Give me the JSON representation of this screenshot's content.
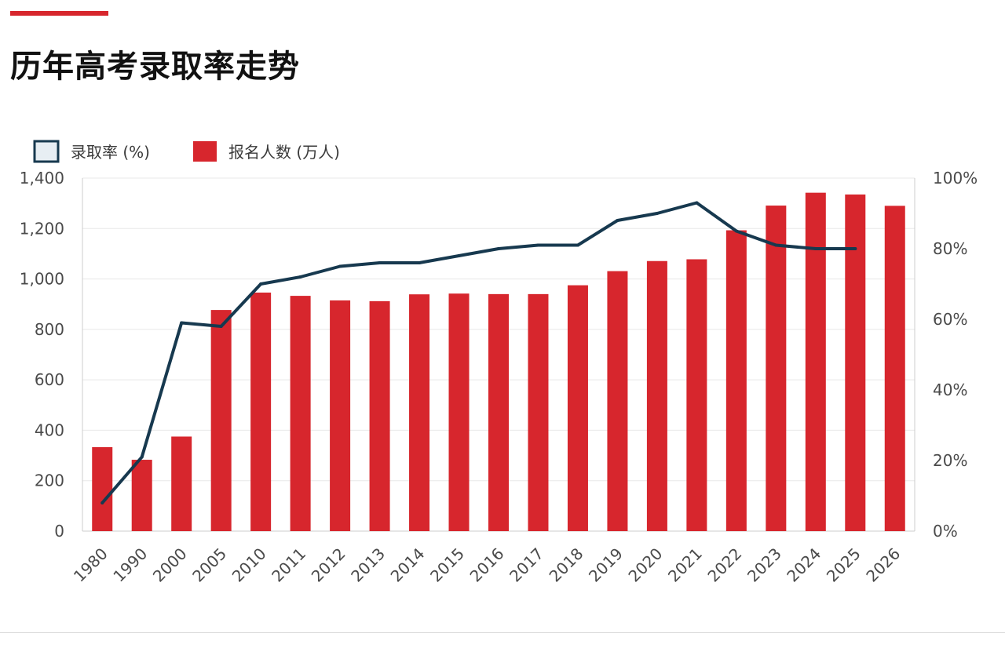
{
  "page": {
    "title": "历年高考录取率走势"
  },
  "colors": {
    "accent": "#d7262d",
    "bar": "#d7262d",
    "line": "#17394f",
    "grid": "#e8e8e8",
    "axis_text": "#4a4a4a"
  },
  "chart_data": {
    "type": "bar",
    "categories": [
      "1980",
      "1990",
      "2000",
      "2005",
      "2010",
      "2011",
      "2012",
      "2013",
      "2014",
      "2015",
      "2016",
      "2017",
      "2018",
      "2019",
      "2020",
      "2021",
      "2022",
      "2023",
      "2024",
      "2025",
      "2026"
    ],
    "series": [
      {
        "name": "报名人数 (万人)",
        "type": "bar",
        "axis": "left",
        "values": [
          333,
          283,
          375,
          877,
          946,
          933,
          915,
          912,
          939,
          942,
          940,
          940,
          975,
          1031,
          1071,
          1078,
          1193,
          1291,
          1342,
          1335,
          1290
        ]
      },
      {
        "name": "录取率 (%)",
        "type": "line",
        "axis": "right",
        "values": [
          8,
          21,
          59,
          58,
          70,
          72,
          75,
          76,
          76,
          78,
          80,
          81,
          81,
          88,
          90,
          93,
          85,
          81,
          80,
          80,
          null
        ]
      }
    ],
    "y_left": {
      "lim": [
        0,
        1400
      ],
      "ticks": [
        0,
        200,
        400,
        600,
        800,
        1000,
        1200,
        1400
      ],
      "tick_labels": [
        "0",
        "200",
        "400",
        "600",
        "800",
        "1,000",
        "1,200",
        "1,400"
      ]
    },
    "y_right": {
      "lim": [
        0,
        100
      ],
      "ticks": [
        0,
        20,
        40,
        60,
        80,
        100
      ],
      "tick_labels": [
        "0%",
        "20%",
        "40%",
        "60%",
        "80%",
        "100%"
      ]
    },
    "grid": true,
    "legend_position": "top-left"
  }
}
